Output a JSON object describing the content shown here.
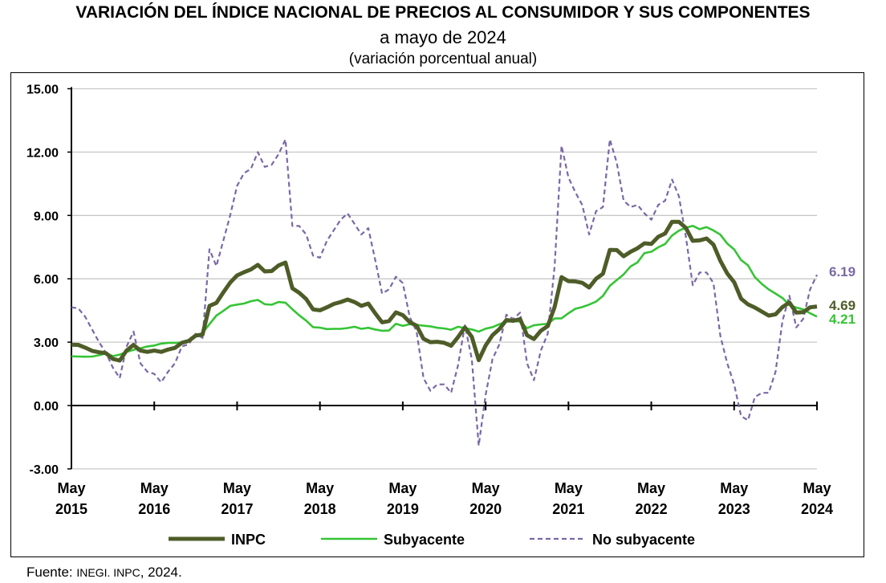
{
  "title": "VARIACIÓN DEL ÍNDICE NACIONAL DE PRECIOS AL CONSUMIDOR Y SUS COMPONENTES",
  "subtitle": "a mayo de 2024",
  "subtitle2": "(variación porcentual anual)",
  "source": {
    "prefix": "Fuente: ",
    "org": "INEGI. INPC",
    "suffix": ", 2024."
  },
  "chart_data": {
    "type": "line",
    "xlabel": "",
    "ylabel": "",
    "x_start": "May 2015",
    "x_end": "May 2024",
    "frequency": "monthly",
    "x_ticks": [
      [
        "May",
        "2015"
      ],
      [
        "May",
        "2016"
      ],
      [
        "May",
        "2017"
      ],
      [
        "May",
        "2018"
      ],
      [
        "May",
        "2019"
      ],
      [
        "May",
        "2020"
      ],
      [
        "May",
        "2021"
      ],
      [
        "May",
        "2022"
      ],
      [
        "May",
        "2023"
      ],
      [
        "May",
        "2024"
      ]
    ],
    "y_ticks": [
      "15.00",
      "12.00",
      "9.00",
      "6.00",
      "3.00",
      "0.00",
      "-3.00"
    ],
    "ylim": [
      -3,
      15
    ],
    "grid": true,
    "legend_position": "bottom",
    "series": [
      {
        "name": "INPC",
        "color": "#4e5c28",
        "style": "solid-thick",
        "end_label": "4.69",
        "values": [
          2.88,
          2.87,
          2.74,
          2.59,
          2.52,
          2.48,
          2.21,
          2.13,
          2.61,
          2.87,
          2.6,
          2.54,
          2.6,
          2.54,
          2.65,
          2.73,
          2.97,
          3.06,
          3.31,
          3.36,
          4.72,
          4.86,
          5.35,
          5.82,
          6.16,
          6.31,
          6.44,
          6.66,
          6.35,
          6.37,
          6.63,
          6.77,
          5.55,
          5.34,
          5.04,
          4.55,
          4.51,
          4.65,
          4.81,
          4.9,
          5.02,
          4.9,
          4.72,
          4.83,
          4.37,
          3.94,
          4.0,
          4.41,
          4.28,
          3.95,
          3.78,
          3.16,
          3.0,
          3.02,
          2.97,
          2.83,
          3.24,
          3.7,
          3.25,
          2.15,
          2.84,
          3.33,
          3.62,
          4.05,
          4.01,
          4.09,
          3.33,
          3.15,
          3.54,
          3.76,
          4.67,
          6.08,
          5.89,
          5.88,
          5.81,
          5.59,
          6.0,
          6.24,
          7.37,
          7.36,
          7.07,
          7.28,
          7.45,
          7.68,
          7.65,
          7.99,
          8.15,
          8.7,
          8.7,
          8.41,
          7.8,
          7.82,
          7.91,
          7.62,
          6.85,
          6.25,
          5.84,
          5.06,
          4.79,
          4.64,
          4.45,
          4.26,
          4.32,
          4.66,
          4.88,
          4.4,
          4.42,
          4.65,
          4.69
        ]
      },
      {
        "name": "Subyacente",
        "color": "#35c435",
        "style": "solid",
        "end_label": "4.21",
        "values": [
          2.33,
          2.32,
          2.31,
          2.32,
          2.38,
          2.47,
          2.34,
          2.41,
          2.54,
          2.64,
          2.71,
          2.8,
          2.84,
          2.93,
          2.97,
          2.97,
          2.99,
          3.1,
          3.29,
          3.44,
          3.85,
          4.26,
          4.48,
          4.72,
          4.78,
          4.83,
          4.94,
          5.0,
          4.8,
          4.77,
          4.9,
          4.87,
          4.56,
          4.27,
          4.02,
          3.71,
          3.69,
          3.62,
          3.63,
          3.63,
          3.67,
          3.73,
          3.63,
          3.68,
          3.6,
          3.54,
          3.55,
          3.87,
          3.77,
          3.85,
          3.82,
          3.78,
          3.75,
          3.68,
          3.65,
          3.59,
          3.73,
          3.66,
          3.6,
          3.5,
          3.64,
          3.71,
          3.85,
          3.97,
          3.99,
          3.98,
          3.66,
          3.8,
          3.84,
          3.87,
          4.12,
          4.13,
          4.37,
          4.58,
          4.66,
          4.78,
          4.92,
          5.19,
          5.67,
          5.94,
          6.21,
          6.59,
          6.78,
          7.22,
          7.28,
          7.49,
          7.65,
          8.05,
          8.28,
          8.42,
          8.51,
          8.35,
          8.45,
          8.29,
          8.09,
          7.67,
          7.39,
          6.89,
          6.64,
          6.08,
          5.76,
          5.5,
          5.3,
          5.09,
          4.76,
          4.64,
          4.55,
          4.37,
          4.21
        ]
      },
      {
        "name": "No subyacente",
        "color": "#7a68a6",
        "style": "dashed",
        "end_label": "6.19",
        "values": [
          4.65,
          4.6,
          4.2,
          3.6,
          3.0,
          2.5,
          1.8,
          1.3,
          2.8,
          3.5,
          2.0,
          1.6,
          1.5,
          1.1,
          1.6,
          2.0,
          2.8,
          2.9,
          3.4,
          3.2,
          7.4,
          6.6,
          7.8,
          9.0,
          10.4,
          11.0,
          11.2,
          12.0,
          11.3,
          11.4,
          11.9,
          12.6,
          8.5,
          8.5,
          8.1,
          7.1,
          7.0,
          7.8,
          8.3,
          8.8,
          9.1,
          8.6,
          8.1,
          8.4,
          6.9,
          5.3,
          5.5,
          6.1,
          5.8,
          4.2,
          3.5,
          1.3,
          0.7,
          1.0,
          1.0,
          0.6,
          1.9,
          3.8,
          2.2,
          -1.9,
          0.5,
          2.2,
          2.9,
          4.3,
          4.1,
          4.4,
          2.0,
          1.2,
          2.6,
          3.4,
          6.6,
          12.3,
          10.8,
          10.1,
          9.5,
          8.1,
          9.2,
          9.4,
          12.6,
          11.5,
          9.7,
          9.4,
          9.5,
          9.1,
          8.8,
          9.5,
          9.7,
          10.7,
          9.9,
          8.0,
          5.7,
          6.3,
          6.3,
          5.8,
          3.3,
          2.0,
          1.0,
          -0.5,
          -0.7,
          0.4,
          0.6,
          0.6,
          1.6,
          4.0,
          5.2,
          3.7,
          4.1,
          5.5,
          6.19
        ]
      }
    ]
  }
}
